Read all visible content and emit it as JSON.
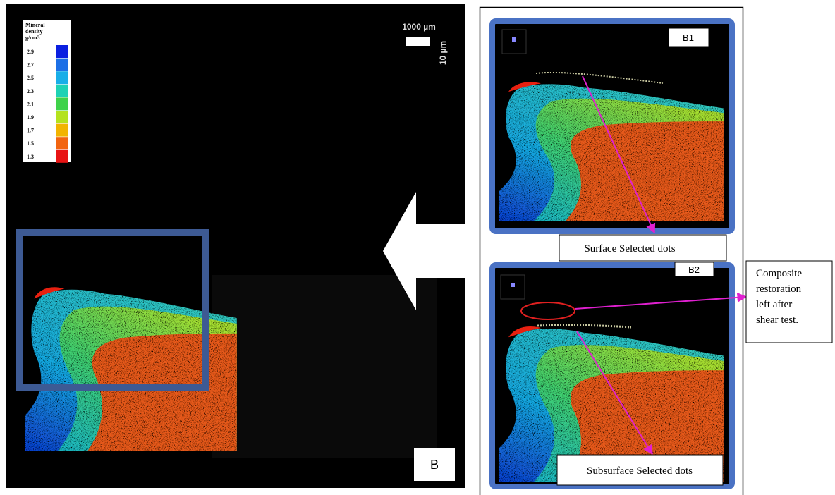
{
  "legend": {
    "title": [
      "Mineral",
      "density",
      "g/cm3"
    ],
    "entries": [
      {
        "label": 2.9,
        "color": "#0a1fe0"
      },
      {
        "label": 2.7,
        "color": "#1c6fe6"
      },
      {
        "label": 2.5,
        "color": "#18aee8"
      },
      {
        "label": 2.3,
        "color": "#1ed2b4"
      },
      {
        "label": 2.1,
        "color": "#3fd24a"
      },
      {
        "label": 1.9,
        "color": "#b4e21e"
      },
      {
        "label": 1.7,
        "color": "#f2b400"
      },
      {
        "label": 1.5,
        "color": "#f26410"
      },
      {
        "label": 1.3,
        "color": "#e81414"
      }
    ]
  },
  "scale_bar": {
    "length_label": "1000 µm",
    "depth_label": "10 µm"
  },
  "panels": {
    "main": {
      "label": "B"
    },
    "b1": {
      "label": "B1",
      "callout": "Surface Selected dots"
    },
    "b2": {
      "label": "B2",
      "callout": "Subsurface Selected dots"
    }
  },
  "annotation": {
    "lines": [
      "Composite",
      "restoration",
      "left after",
      "shear test."
    ]
  }
}
